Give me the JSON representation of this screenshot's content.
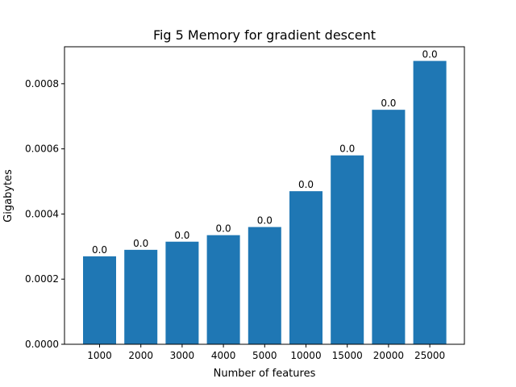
{
  "chart_data": {
    "type": "bar",
    "title": "Fig 5 Memory for gradient descent",
    "xlabel": "Number of features",
    "ylabel": "Gigabytes",
    "categories": [
      "1000",
      "2000",
      "3000",
      "4000",
      "5000",
      "10000",
      "15000",
      "20000",
      "25000"
    ],
    "values": [
      0.00027,
      0.00029,
      0.000315,
      0.000335,
      0.00036,
      0.00047,
      0.00058,
      0.00072,
      0.00087
    ],
    "data_labels": [
      "0.0",
      "0.0",
      "0.0",
      "0.0",
      "0.0",
      "0.0",
      "0.0",
      "0.0",
      "0.0"
    ],
    "yticks": [
      "0.0000",
      "0.0002",
      "0.0004",
      "0.0006",
      "0.0008"
    ],
    "ytick_values": [
      0,
      0.0002,
      0.0004,
      0.0006,
      0.0008
    ],
    "ylim": [
      0,
      0.0009135
    ],
    "bar_color": "#1f77b4",
    "grid": false,
    "legend": "none"
  }
}
